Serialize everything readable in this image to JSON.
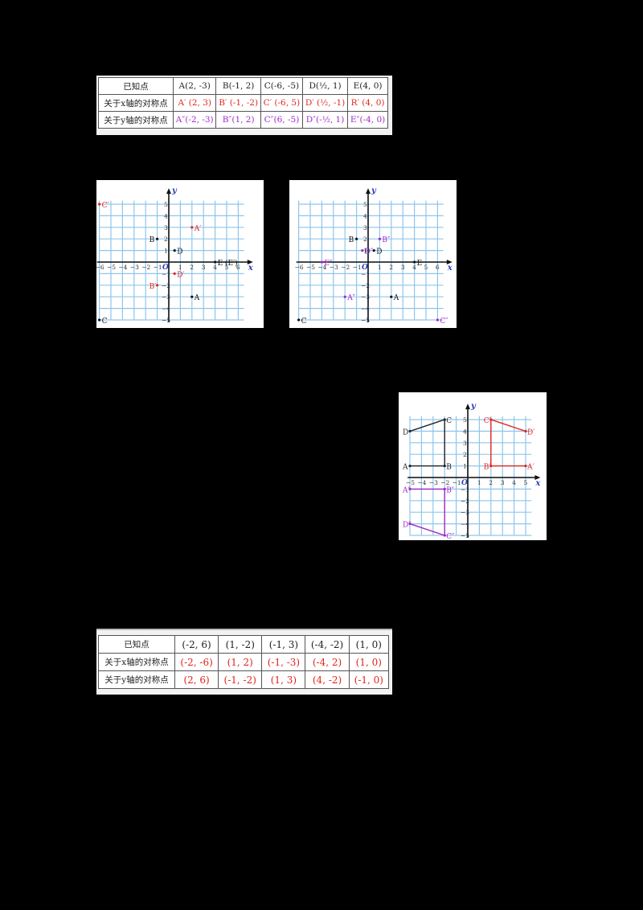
{
  "colors": {
    "red": "#e0261d",
    "purple": "#a128c9",
    "grid": "#8fc6ea",
    "axis": "#111111",
    "axis_label": "#2b3dbf"
  },
  "table1": {
    "headers": [
      "已知点",
      "A(2, -3)",
      "B(-1, 2)",
      "C(-6, -5)",
      "D(½, 1)",
      "E(4, 0)"
    ],
    "row_x": {
      "label": "关于x轴的对称点",
      "cells": [
        "A′ (2, 3)",
        "B′ (-1, -2)",
        "C′ (-6, 5)",
        "D′ (½, -1)",
        "R′ (4, 0)"
      ]
    },
    "row_y": {
      "label": "关于y轴的对称点",
      "cells": [
        "A″(-2, -3)",
        "B″(1, 2)",
        "C″(6, -5)",
        "D″(-½, 1)",
        "E″(-4, 0)"
      ]
    }
  },
  "table2": {
    "headers": [
      "已知点",
      "(-2, 6)",
      "(1, -2)",
      "(-1, 3)",
      "(-4, -2)",
      "(1, 0)"
    ],
    "row_x": {
      "label": "关于x轴的对称点",
      "cells": [
        "(-2, -6)",
        "(1, 2)",
        "(-1, -3)",
        "(-4, 2)",
        "(1, 0)"
      ]
    },
    "row_y": {
      "label": "关于y轴的对称点",
      "cells": [
        "(2, 6)",
        "(-1, -2)",
        "(1, 3)",
        "(4, -2)",
        "(-1, 0)"
      ]
    }
  },
  "chart_data": [
    {
      "type": "scatter",
      "title": "",
      "xlabel": "x",
      "ylabel": "y",
      "origin_label": "O",
      "xlim": [
        -6,
        6
      ],
      "ylim": [
        -5,
        5
      ],
      "grid": true,
      "series": [
        {
          "name": "original",
          "color": "#111111",
          "points": [
            {
              "label": "A",
              "x": 2,
              "y": -3
            },
            {
              "label": "B",
              "x": -1,
              "y": 2
            },
            {
              "label": "C",
              "x": -6,
              "y": -5
            },
            {
              "label": "D",
              "x": 0.5,
              "y": 1
            },
            {
              "label": "E (E′)",
              "x": 4,
              "y": 0
            }
          ]
        },
        {
          "name": "x-axis reflection",
          "color": "#e0261d",
          "points": [
            {
              "label": "A′",
              "x": 2,
              "y": 3
            },
            {
              "label": "B′",
              "x": -1,
              "y": -2
            },
            {
              "label": "C′",
              "x": -6,
              "y": 5
            },
            {
              "label": "D′",
              "x": 0.5,
              "y": -1
            }
          ]
        }
      ]
    },
    {
      "type": "scatter",
      "title": "",
      "xlabel": "x",
      "ylabel": "y",
      "origin_label": "O",
      "xlim": [
        -6,
        6
      ],
      "ylim": [
        -5,
        5
      ],
      "grid": true,
      "series": [
        {
          "name": "original",
          "color": "#111111",
          "points": [
            {
              "label": "A",
              "x": 2,
              "y": -3
            },
            {
              "label": "B",
              "x": -1,
              "y": 2
            },
            {
              "label": "C",
              "x": -6,
              "y": -5
            },
            {
              "label": "D",
              "x": 0.5,
              "y": 1
            },
            {
              "label": "E",
              "x": 4,
              "y": 0
            }
          ]
        },
        {
          "name": "y-axis reflection",
          "color": "#a128c9",
          "points": [
            {
              "label": "A″",
              "x": -2,
              "y": -3
            },
            {
              "label": "B″",
              "x": 1,
              "y": 2
            },
            {
              "label": "C″",
              "x": 6,
              "y": -5
            },
            {
              "label": "D″",
              "x": -0.5,
              "y": 1
            },
            {
              "label": "E″",
              "x": -4,
              "y": 0
            }
          ]
        }
      ]
    },
    {
      "type": "line",
      "title": "",
      "xlabel": "x",
      "ylabel": "y",
      "origin_label": "O",
      "xlim": [
        -5,
        5
      ],
      "ylim": [
        -5,
        5
      ],
      "grid": true,
      "series": [
        {
          "name": "ABCD",
          "color": "#222222",
          "closed": false,
          "points": [
            {
              "label": "A",
              "x": -5,
              "y": 1
            },
            {
              "label": "B",
              "x": -2,
              "y": 1
            },
            {
              "label": "C",
              "x": -2,
              "y": 5
            },
            {
              "label": "D",
              "x": -5,
              "y": 4
            }
          ]
        },
        {
          "name": "A′B′C′D′",
          "color": "#e0261d",
          "closed": false,
          "points": [
            {
              "label": "A′",
              "x": 5,
              "y": 1
            },
            {
              "label": "B′",
              "x": 2,
              "y": 1
            },
            {
              "label": "C′",
              "x": 2,
              "y": 5
            },
            {
              "label": "D′",
              "x": 5,
              "y": 4
            }
          ]
        },
        {
          "name": "A″B″C″D″",
          "color": "#a128c9",
          "closed": false,
          "points": [
            {
              "label": "A″",
              "x": -5,
              "y": -1
            },
            {
              "label": "B″",
              "x": -2,
              "y": -1
            },
            {
              "label": "C″",
              "x": -2,
              "y": -5
            },
            {
              "label": "D″",
              "x": -5,
              "y": -4
            }
          ]
        }
      ]
    }
  ]
}
